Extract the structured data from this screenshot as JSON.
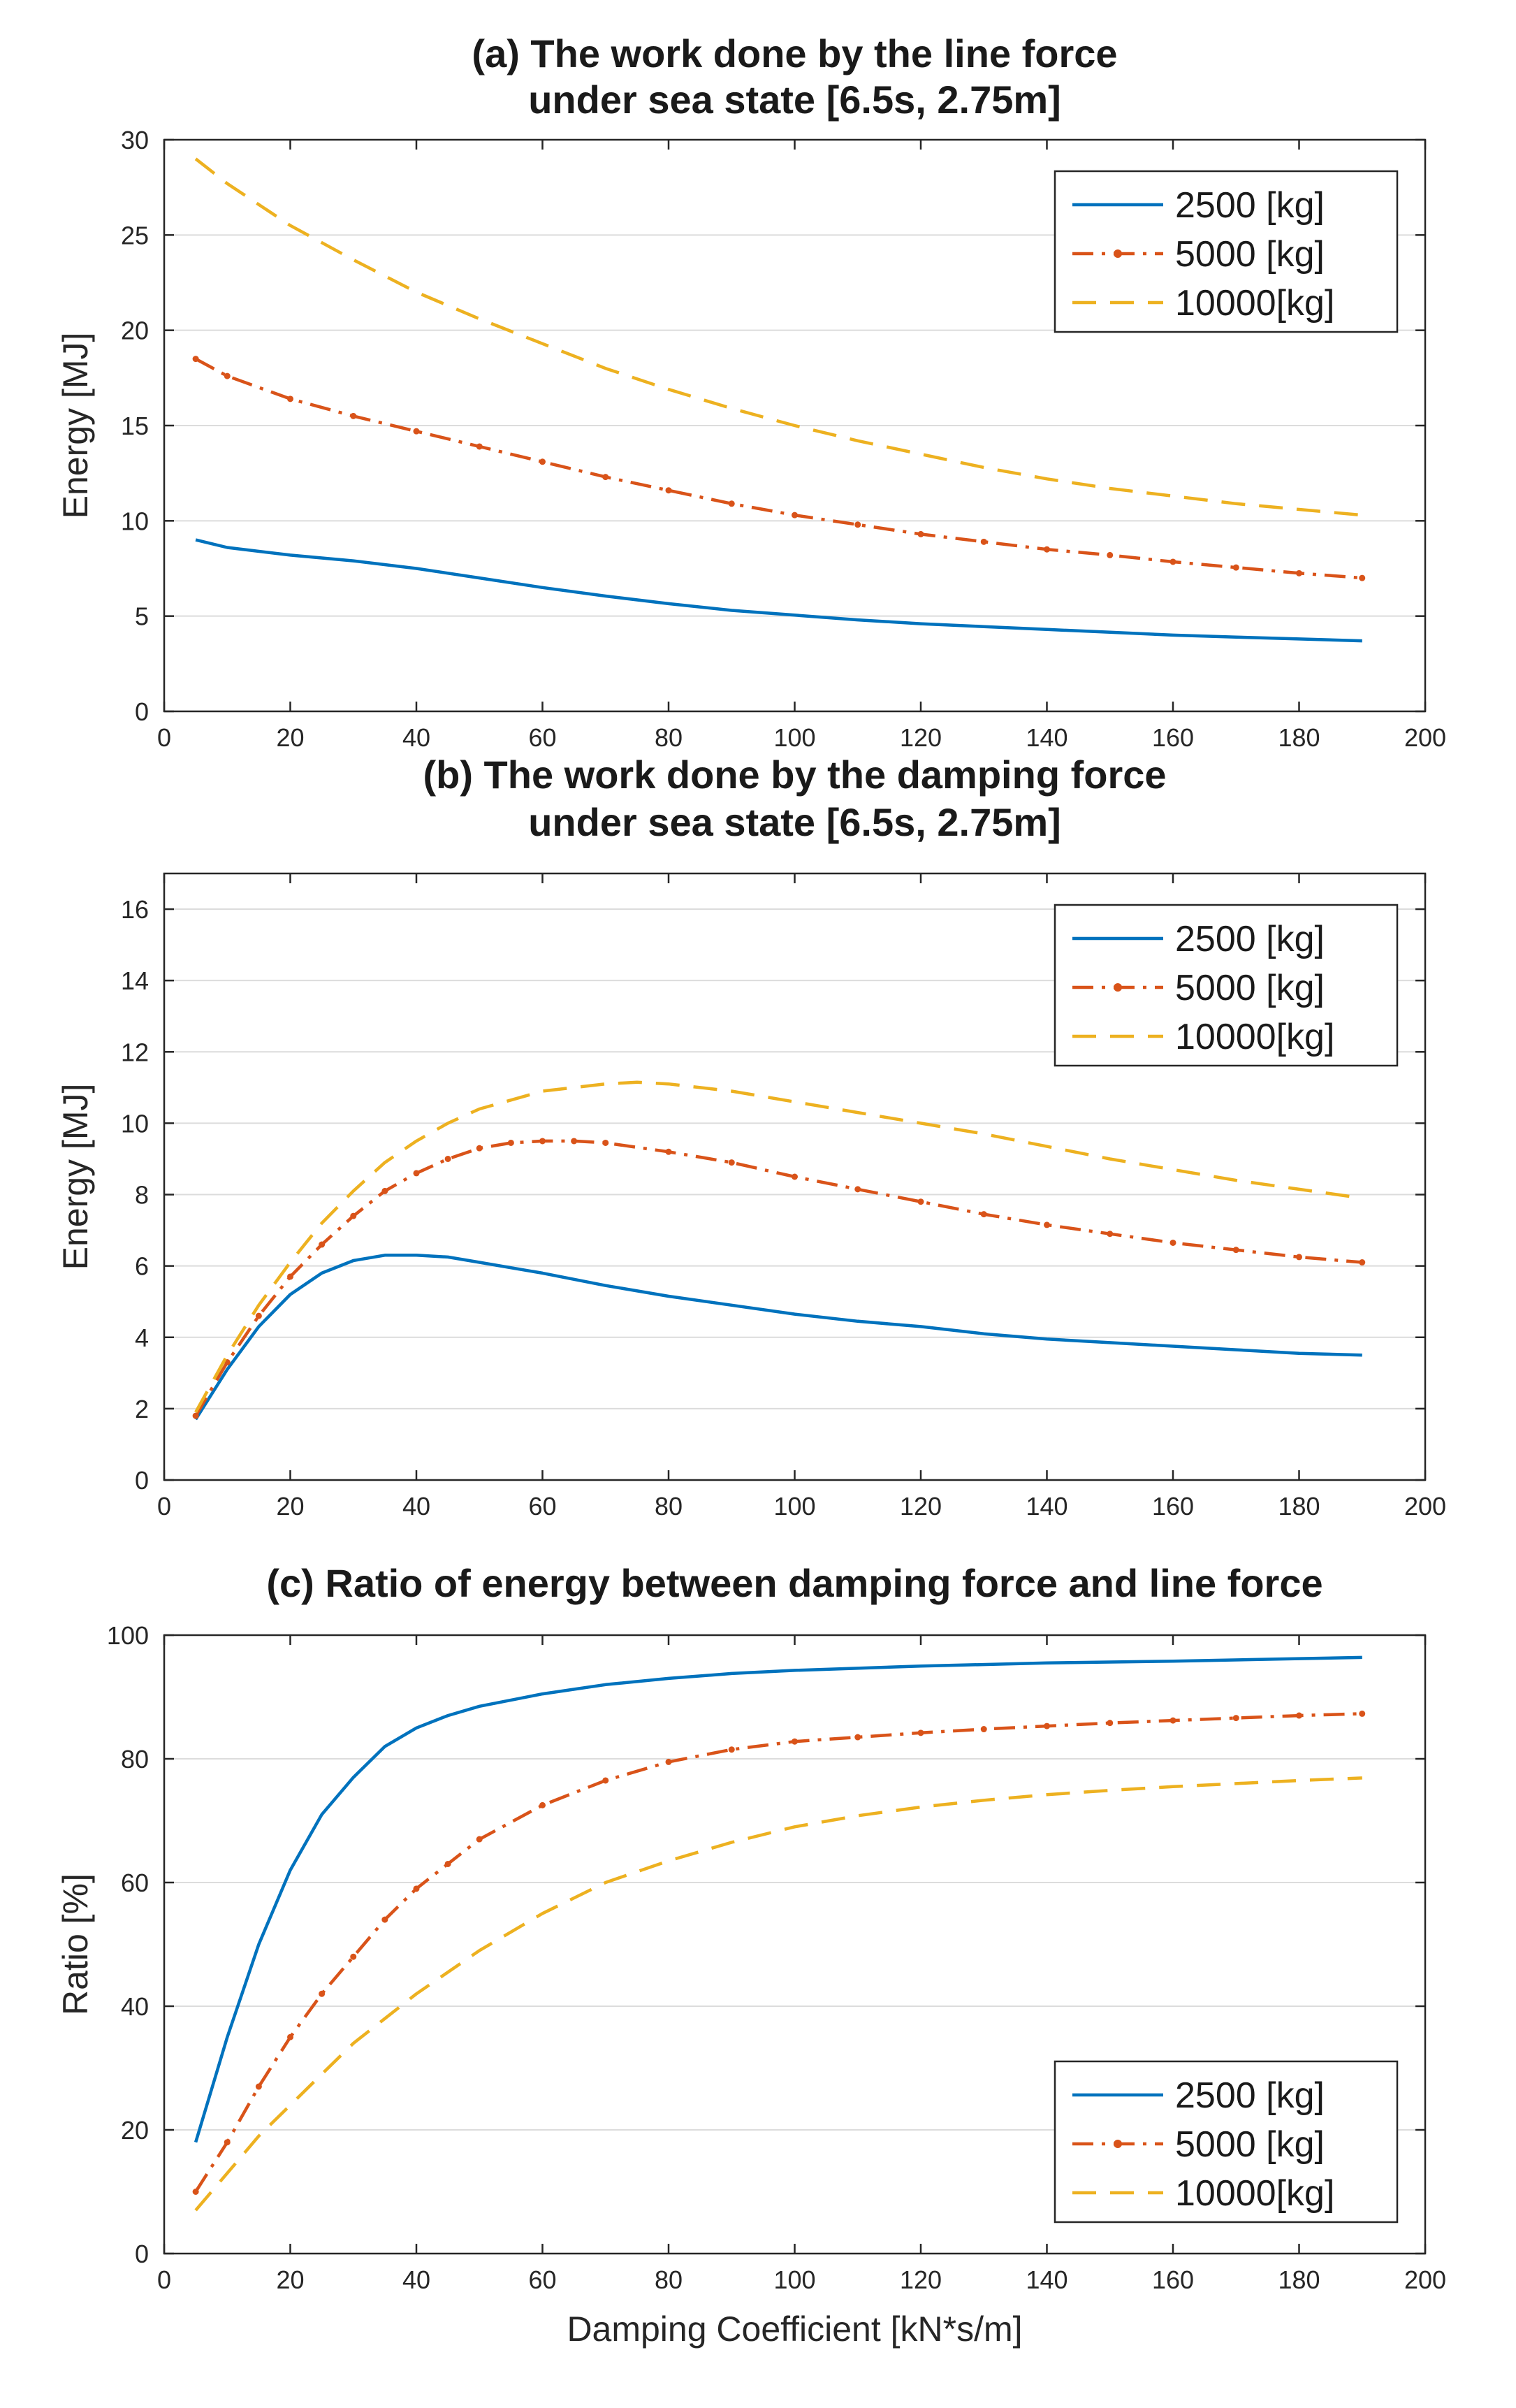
{
  "chart_data": [
    {
      "type": "line",
      "title": "(a) The work done by the line force",
      "subtitle": "under sea state [6.5s, 2.75m]",
      "xlabel": "",
      "ylabel": "Energy [MJ]",
      "xlim": [
        0,
        200
      ],
      "ylim": [
        0,
        30
      ],
      "xticks": [
        0,
        20,
        40,
        60,
        80,
        100,
        120,
        140,
        160,
        180,
        200
      ],
      "yticks": [
        0,
        5,
        10,
        15,
        20,
        25,
        30
      ],
      "grid": true,
      "legend": "top-right",
      "series": [
        {
          "name": "2500  [kg]",
          "color": "#0072bd",
          "style": "solid",
          "x": [
            5,
            10,
            20,
            30,
            40,
            50,
            60,
            70,
            80,
            90,
            100,
            110,
            120,
            130,
            140,
            150,
            160,
            170,
            180,
            190
          ],
          "y": [
            9.0,
            8.6,
            8.2,
            7.9,
            7.5,
            7.0,
            6.5,
            6.05,
            5.65,
            5.3,
            5.05,
            4.8,
            4.6,
            4.45,
            4.3,
            4.15,
            4.0,
            3.9,
            3.8,
            3.7
          ]
        },
        {
          "name": "5000  [kg]",
          "color": "#d95319",
          "style": "dashdot",
          "x": [
            5,
            10,
            20,
            30,
            40,
            50,
            60,
            70,
            80,
            90,
            100,
            110,
            120,
            130,
            140,
            150,
            160,
            170,
            180,
            190
          ],
          "y": [
            18.5,
            17.6,
            16.4,
            15.5,
            14.7,
            13.9,
            13.1,
            12.3,
            11.6,
            10.9,
            10.3,
            9.8,
            9.3,
            8.9,
            8.5,
            8.2,
            7.85,
            7.55,
            7.25,
            7.0
          ]
        },
        {
          "name": "10000[kg]",
          "color": "#edb120",
          "style": "dashed",
          "x": [
            5,
            10,
            20,
            30,
            40,
            50,
            60,
            70,
            80,
            90,
            100,
            110,
            120,
            130,
            140,
            150,
            160,
            170,
            180,
            190
          ],
          "y": [
            29.0,
            27.7,
            25.5,
            23.7,
            22.0,
            20.6,
            19.3,
            18.0,
            16.9,
            15.9,
            15.0,
            14.2,
            13.5,
            12.8,
            12.2,
            11.7,
            11.3,
            10.9,
            10.6,
            10.3
          ]
        }
      ]
    },
    {
      "type": "line",
      "title": "(b) The work done by the damping force",
      "subtitle": "under sea state [6.5s, 2.75m]",
      "xlabel": "",
      "ylabel": "Energy [MJ]",
      "xlim": [
        0,
        200
      ],
      "ylim": [
        0,
        17
      ],
      "xticks": [
        0,
        20,
        40,
        60,
        80,
        100,
        120,
        140,
        160,
        180,
        200
      ],
      "yticks": [
        0,
        2,
        4,
        6,
        8,
        10,
        12,
        14,
        16
      ],
      "grid": true,
      "legend": "top-right",
      "series": [
        {
          "name": "2500  [kg]",
          "color": "#0072bd",
          "style": "solid",
          "x": [
            5,
            10,
            15,
            20,
            25,
            30,
            35,
            40,
            45,
            50,
            60,
            70,
            80,
            90,
            100,
            110,
            120,
            130,
            140,
            150,
            160,
            170,
            180,
            190
          ],
          "y": [
            1.7,
            3.1,
            4.3,
            5.2,
            5.8,
            6.15,
            6.3,
            6.3,
            6.25,
            6.1,
            5.8,
            5.45,
            5.15,
            4.9,
            4.65,
            4.45,
            4.3,
            4.1,
            3.95,
            3.85,
            3.75,
            3.65,
            3.55,
            3.5
          ]
        },
        {
          "name": "5000  [kg]",
          "color": "#d95319",
          "style": "dashdot",
          "x": [
            5,
            10,
            15,
            20,
            25,
            30,
            35,
            40,
            45,
            50,
            55,
            60,
            65,
            70,
            80,
            90,
            100,
            110,
            120,
            130,
            140,
            150,
            160,
            170,
            180,
            190
          ],
          "y": [
            1.8,
            3.3,
            4.6,
            5.7,
            6.6,
            7.4,
            8.1,
            8.6,
            9.0,
            9.3,
            9.45,
            9.5,
            9.5,
            9.45,
            9.2,
            8.9,
            8.5,
            8.15,
            7.8,
            7.45,
            7.15,
            6.9,
            6.65,
            6.45,
            6.25,
            6.1
          ]
        },
        {
          "name": "10000[kg]",
          "color": "#edb120",
          "style": "dashed",
          "x": [
            5,
            10,
            15,
            20,
            25,
            30,
            35,
            40,
            45,
            50,
            60,
            70,
            75,
            80,
            90,
            100,
            110,
            120,
            130,
            140,
            150,
            160,
            170,
            180,
            190
          ],
          "y": [
            1.9,
            3.5,
            4.9,
            6.1,
            7.2,
            8.1,
            8.9,
            9.5,
            10.0,
            10.4,
            10.9,
            11.1,
            11.15,
            11.1,
            10.9,
            10.6,
            10.3,
            10.0,
            9.7,
            9.35,
            9.0,
            8.7,
            8.4,
            8.15,
            7.9
          ]
        }
      ]
    },
    {
      "type": "line",
      "title": "(c) Ratio of energy between damping force and line force",
      "subtitle": "",
      "xlabel": "Damping Coefficient [kN*s/m]",
      "ylabel": "Ratio [%]",
      "xlim": [
        0,
        200
      ],
      "ylim": [
        0,
        100
      ],
      "xticks": [
        0,
        20,
        40,
        60,
        80,
        100,
        120,
        140,
        160,
        180,
        200
      ],
      "yticks": [
        0,
        20,
        40,
        60,
        80,
        100
      ],
      "grid": true,
      "legend": "bottom-right",
      "series": [
        {
          "name": "2500  [kg]",
          "color": "#0072bd",
          "style": "solid",
          "x": [
            5,
            10,
            15,
            20,
            25,
            30,
            35,
            40,
            45,
            50,
            60,
            70,
            80,
            90,
            100,
            120,
            140,
            160,
            180,
            190
          ],
          "y": [
            18,
            35,
            50,
            62,
            71,
            77,
            82,
            85,
            87,
            88.5,
            90.5,
            92,
            93,
            93.8,
            94.3,
            95,
            95.5,
            95.8,
            96.2,
            96.4
          ]
        },
        {
          "name": "5000  [kg]",
          "color": "#d95319",
          "style": "dashdot",
          "x": [
            5,
            10,
            15,
            20,
            25,
            30,
            35,
            40,
            45,
            50,
            60,
            70,
            80,
            90,
            100,
            110,
            120,
            130,
            140,
            150,
            160,
            170,
            180,
            190
          ],
          "y": [
            10,
            18,
            27,
            35,
            42,
            48,
            54,
            59,
            63,
            67,
            72.5,
            76.5,
            79.5,
            81.5,
            82.8,
            83.5,
            84.2,
            84.8,
            85.3,
            85.8,
            86.2,
            86.6,
            87.0,
            87.3
          ]
        },
        {
          "name": "10000[kg]",
          "color": "#edb120",
          "style": "dashed",
          "x": [
            5,
            10,
            15,
            20,
            25,
            30,
            35,
            40,
            50,
            60,
            70,
            80,
            90,
            100,
            110,
            120,
            130,
            140,
            150,
            160,
            170,
            180,
            190
          ],
          "y": [
            7,
            13,
            19,
            24,
            29,
            34,
            38,
            42,
            49,
            55,
            60,
            63.5,
            66.5,
            69,
            70.8,
            72.2,
            73.3,
            74.2,
            74.9,
            75.5,
            76.0,
            76.5,
            76.9
          ]
        }
      ]
    }
  ]
}
